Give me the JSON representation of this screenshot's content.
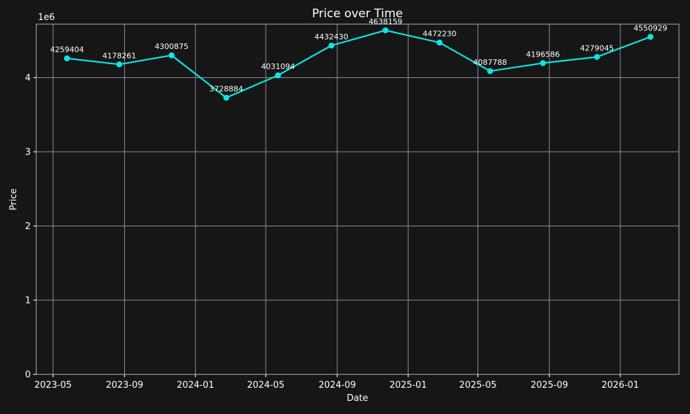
{
  "chart_data": {
    "type": "line",
    "title": "Price over Time",
    "xlabel": "Date",
    "ylabel": "Price",
    "y_axis_offset_label": "1e6",
    "x_tick_labels": [
      "2023-05",
      "2023-09",
      "2024-01",
      "2024-05",
      "2024-09",
      "2025-01",
      "2025-05",
      "2025-09",
      "2026-01"
    ],
    "y_ticks": [
      {
        "value": 0,
        "label": "0"
      },
      {
        "value": 1000000,
        "label": "1"
      },
      {
        "value": 2000000,
        "label": "2"
      },
      {
        "value": 3000000,
        "label": "3"
      },
      {
        "value": 4000000,
        "label": "4"
      }
    ],
    "xlim": [
      "2023-04-02",
      "2026-04-12"
    ],
    "ylim": [
      0,
      4720930
    ],
    "grid": true,
    "legend": false,
    "series": [
      {
        "name": "Price",
        "points": [
          {
            "date": "2023-05-25",
            "value": 4259404
          },
          {
            "date": "2023-08-23",
            "value": 4178261
          },
          {
            "date": "2023-11-21",
            "value": 4300875
          },
          {
            "date": "2024-02-23",
            "value": 3728884
          },
          {
            "date": "2024-05-22",
            "value": 4031094
          },
          {
            "date": "2024-08-22",
            "value": 4432430
          },
          {
            "date": "2024-11-23",
            "value": 4638159
          },
          {
            "date": "2025-02-24",
            "value": 4472230
          },
          {
            "date": "2025-05-22",
            "value": 4087788
          },
          {
            "date": "2025-08-21",
            "value": 4196586
          },
          {
            "date": "2025-11-22",
            "value": 4279045
          },
          {
            "date": "2026-02-22",
            "value": 4550929
          }
        ],
        "point_labels": [
          "4259404",
          "4178261",
          "4300875",
          "3728884",
          "4031094",
          "4432430",
          "4638159",
          "4472230",
          "4087788",
          "4196586",
          "4279045",
          "4550929"
        ]
      }
    ],
    "colors": {
      "line": "#0ae6e6",
      "marker": "#0ae6e6",
      "background": "#161616",
      "grid": "#8f8f8f",
      "spine": "#999999",
      "tick": "#ffffff",
      "text": "#ffffff"
    }
  }
}
